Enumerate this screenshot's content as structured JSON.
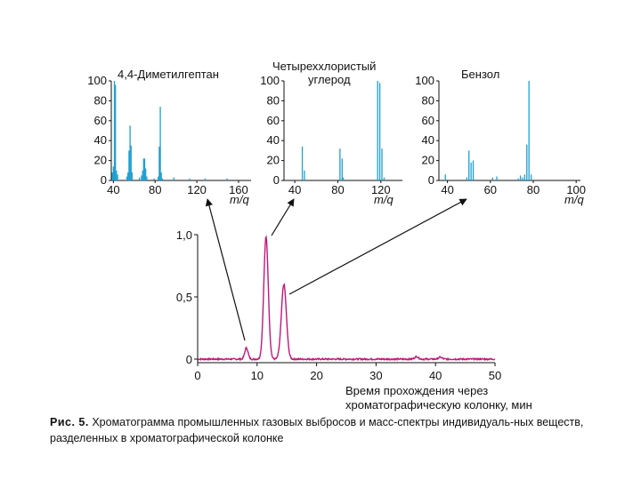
{
  "colors": {
    "spectrum": "#1f9fd0",
    "chromatogram": "#c0187a",
    "axis": "#111111",
    "arrow": "#111111"
  },
  "caption": {
    "label": "Рис. 5.",
    "text": "Хроматограмма промышленных газовых выбросов и масс-спектры индивидуаль-ных веществ, разделенных в хроматографической колонке"
  },
  "chart_data": [
    {
      "id": "spectrum1",
      "type": "bar",
      "title": "4,4-Диметилгептан",
      "xlabel": "m/q",
      "xlim": [
        38,
        172
      ],
      "ylim": [
        0,
        100
      ],
      "xticks": [
        40,
        80,
        120,
        160
      ],
      "yticks": [
        0,
        20,
        40,
        60,
        80,
        100
      ],
      "peaks": [
        [
          39,
          8
        ],
        [
          40,
          14
        ],
        [
          41,
          100
        ],
        [
          42,
          96
        ],
        [
          43,
          10
        ],
        [
          44,
          6
        ],
        [
          53,
          4
        ],
        [
          54,
          8
        ],
        [
          55,
          30
        ],
        [
          56,
          55
        ],
        [
          57,
          35
        ],
        [
          58,
          8
        ],
        [
          65,
          3
        ],
        [
          67,
          5
        ],
        [
          68,
          10
        ],
        [
          69,
          22
        ],
        [
          70,
          22
        ],
        [
          71,
          12
        ],
        [
          72,
          4
        ],
        [
          79,
          2
        ],
        [
          83,
          4
        ],
        [
          84,
          34
        ],
        [
          85,
          74
        ],
        [
          86,
          8
        ],
        [
          87,
          2
        ],
        [
          98,
          3
        ],
        [
          113,
          2
        ],
        [
          128,
          2
        ],
        [
          149,
          2
        ]
      ]
    },
    {
      "id": "spectrum2",
      "type": "bar",
      "title": "Четыреххлористый углерод",
      "title_lines": [
        "Четыреххлористый",
        "углерод"
      ],
      "xlabel": "m/q",
      "xlim": [
        30,
        140
      ],
      "ylim": [
        0,
        100
      ],
      "xticks": [
        40,
        80,
        120
      ],
      "yticks": [
        0,
        20,
        40,
        60,
        80,
        100
      ],
      "peaks": [
        [
          47,
          34
        ],
        [
          49,
          10
        ],
        [
          82,
          32
        ],
        [
          84,
          22
        ],
        [
          85,
          3
        ],
        [
          117,
          100
        ],
        [
          119,
          98
        ],
        [
          121,
          32
        ],
        [
          123,
          3
        ]
      ]
    },
    {
      "id": "spectrum3",
      "type": "bar",
      "title": "Бензол",
      "xlabel": "m/q",
      "xlim": [
        36,
        102
      ],
      "ylim": [
        0,
        100
      ],
      "xticks": [
        40,
        60,
        80,
        100
      ],
      "yticks": [
        0,
        20,
        40,
        60,
        80,
        100
      ],
      "peaks": [
        [
          39,
          6
        ],
        [
          49,
          3
        ],
        [
          50,
          30
        ],
        [
          51,
          18
        ],
        [
          52,
          20
        ],
        [
          61,
          3
        ],
        [
          63,
          4
        ],
        [
          73,
          2
        ],
        [
          74,
          5
        ],
        [
          75,
          3
        ],
        [
          76,
          6
        ],
        [
          77,
          36
        ],
        [
          78,
          100
        ],
        [
          79,
          6
        ]
      ]
    },
    {
      "id": "chromatogram",
      "type": "line",
      "xlabel": "Время прохождения через хроматографическую колонку, мин",
      "xlabel_lines": [
        "Время прохождения через",
        "хроматографическую колонку, мин"
      ],
      "xlim": [
        0,
        50
      ],
      "ylim": [
        0,
        1.0
      ],
      "xticks": [
        0,
        10,
        20,
        30,
        40,
        50
      ],
      "yticks": [
        0,
        0.5,
        1.0
      ],
      "yticklabels": [
        "0",
        "0,5",
        "1,0"
      ],
      "baseline": 0.0,
      "peaks": [
        {
          "t": 8.2,
          "h": 0.09,
          "w": 0.28
        },
        {
          "t": 11.5,
          "h": 0.98,
          "w": 0.38
        },
        {
          "t": 14.5,
          "h": 0.6,
          "w": 0.42
        },
        {
          "t": 36.8,
          "h": 0.02,
          "w": 0.3
        },
        {
          "t": 40.8,
          "h": 0.015,
          "w": 0.3
        }
      ]
    }
  ]
}
